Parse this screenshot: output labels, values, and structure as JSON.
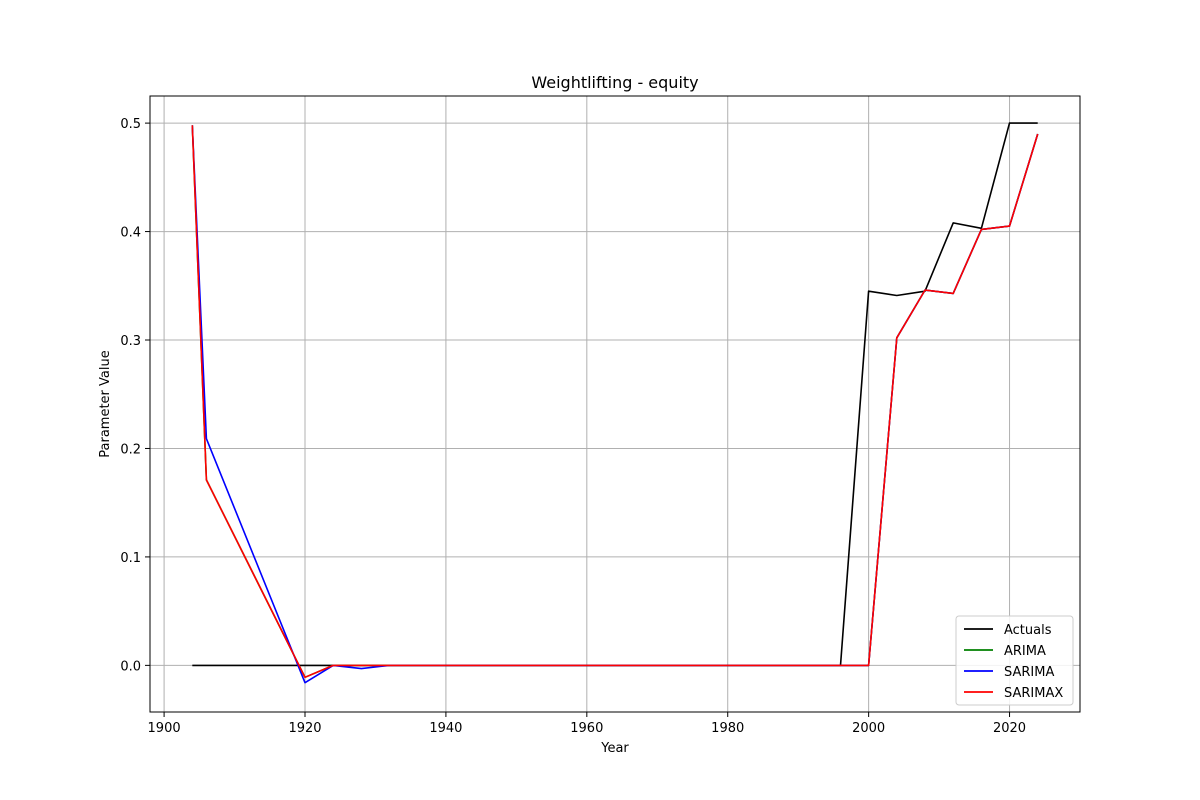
{
  "chart_data": {
    "type": "line",
    "title": "Weightlifting - equity",
    "xlabel": "Year",
    "ylabel": "Parameter Value",
    "xlim": [
      1898,
      2030
    ],
    "ylim": [
      -0.043,
      0.525
    ],
    "xticks": [
      1900,
      1920,
      1940,
      1960,
      1980,
      2000,
      2020
    ],
    "yticks": [
      0.0,
      0.1,
      0.2,
      0.3,
      0.4,
      0.5
    ],
    "ytick_labels": [
      "0.0",
      "0.1",
      "0.2",
      "0.3",
      "0.4",
      "0.5"
    ],
    "grid": true,
    "legend_position": "lower-right",
    "series": [
      {
        "name": "Actuals",
        "color": "#000000",
        "x": [
          1904,
          1906,
          1920,
          1924,
          1928,
          1932,
          1936,
          1948,
          1952,
          1956,
          1960,
          1964,
          1968,
          1972,
          1976,
          1980,
          1984,
          1988,
          1992,
          1996,
          2000,
          2004,
          2008,
          2012,
          2016,
          2020,
          2024
        ],
        "y": [
          0.0,
          0.0,
          0.0,
          0.0,
          0.0,
          0.0,
          0.0,
          0.0,
          0.0,
          0.0,
          0.0,
          0.0,
          0.0,
          0.0,
          0.0,
          0.0,
          0.0,
          0.0,
          0.0,
          0.0,
          0.345,
          0.341,
          0.345,
          0.408,
          0.403,
          0.5,
          0.5
        ]
      },
      {
        "name": "ARIMA",
        "color": "#008000",
        "x": [
          1904,
          1906,
          1920,
          1924,
          1928,
          1932,
          1936,
          1948,
          1952,
          1956,
          1960,
          1964,
          1968,
          1972,
          1976,
          1980,
          1984,
          1988,
          1992,
          1996,
          2000,
          2004,
          2008,
          2012,
          2016,
          2020,
          2024
        ],
        "y": [
          0.498,
          0.171,
          -0.011,
          0.0,
          0.0,
          0.0,
          0.0,
          0.0,
          0.0,
          0.0,
          0.0,
          0.0,
          0.0,
          0.0,
          0.0,
          0.0,
          0.0,
          0.0,
          0.0,
          0.0,
          0.0,
          0.302,
          0.346,
          0.343,
          0.402,
          0.405,
          0.49
        ]
      },
      {
        "name": "SARIMA",
        "color": "#0000ff",
        "x": [
          1904,
          1906,
          1920,
          1924,
          1928,
          1932,
          1936,
          1948,
          1952,
          1956,
          1960,
          1964,
          1968,
          1972,
          1976,
          1980,
          1984,
          1988,
          1992,
          1996,
          2000,
          2004,
          2008,
          2012,
          2016,
          2020,
          2024
        ],
        "y": [
          0.498,
          0.209,
          -0.016,
          0.0,
          -0.003,
          0.0,
          0.0,
          0.0,
          0.0,
          0.0,
          0.0,
          0.0,
          0.0,
          0.0,
          0.0,
          0.0,
          0.0,
          0.0,
          0.0,
          0.0,
          0.0,
          0.302,
          0.346,
          0.343,
          0.402,
          0.405,
          0.49
        ]
      },
      {
        "name": "SARIMAX",
        "color": "#ff0000",
        "x": [
          1904,
          1906,
          1920,
          1924,
          1928,
          1932,
          1936,
          1948,
          1952,
          1956,
          1960,
          1964,
          1968,
          1972,
          1976,
          1980,
          1984,
          1988,
          1992,
          1996,
          2000,
          2004,
          2008,
          2012,
          2016,
          2020,
          2024
        ],
        "y": [
          0.498,
          0.171,
          -0.011,
          0.0,
          0.0,
          0.0,
          0.0,
          0.0,
          0.0,
          0.0,
          0.0,
          0.0,
          0.0,
          0.0,
          0.0,
          0.0,
          0.0,
          0.0,
          0.0,
          0.0,
          0.0,
          0.302,
          0.346,
          0.343,
          0.402,
          0.405,
          0.49
        ]
      }
    ]
  }
}
